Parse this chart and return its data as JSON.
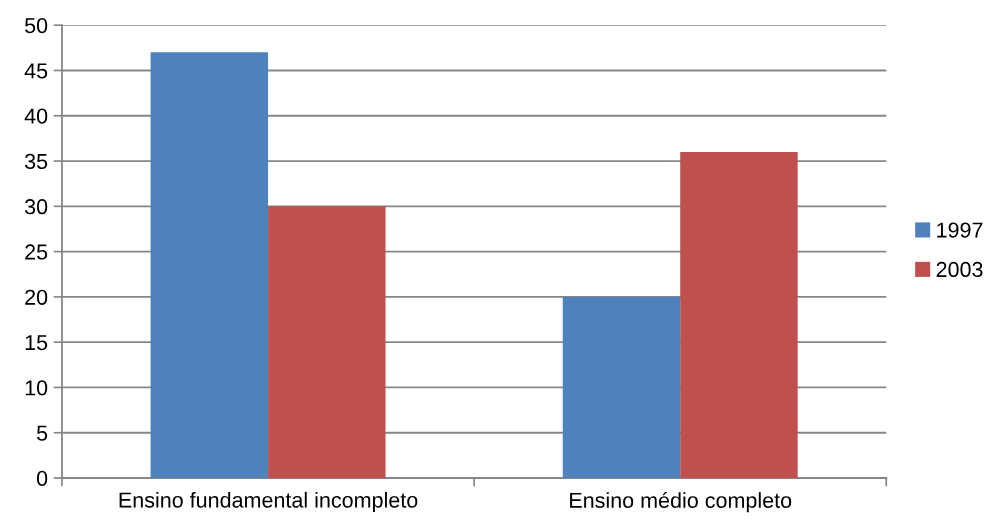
{
  "chart_data": {
    "type": "bar",
    "categories": [
      "Ensino fundamental incompleto",
      "Ensino médio completo"
    ],
    "series": [
      {
        "name": "1997",
        "color": "#4f81bd",
        "values": [
          47,
          20
        ]
      },
      {
        "name": "2003",
        "color": "#c0504d",
        "values": [
          30,
          36
        ]
      }
    ],
    "ylim": [
      0,
      50
    ],
    "yticks": [
      0,
      5,
      10,
      15,
      20,
      25,
      30,
      35,
      40,
      45,
      50
    ],
    "grid": "y",
    "legend": "right"
  }
}
